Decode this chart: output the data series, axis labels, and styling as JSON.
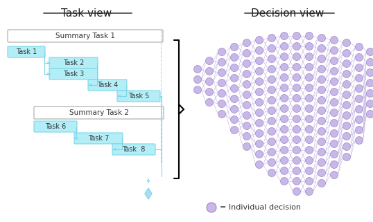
{
  "title_left": "Task view",
  "title_right": "Decision view",
  "legend_text": "= Individual decision",
  "task_box_color": "#b3eef7",
  "task_box_edge": "#7dd6ea",
  "summary_box_color": "#ffffff",
  "summary_box_edge": "#aaaaaa",
  "node_color": "#c8b8e8",
  "node_edge": "#9b85c9",
  "arrow_color": "#7dd6ea",
  "dashed_color": "#b0d8e8",
  "brace_color": "#000000",
  "diamond_color": "#a8dff0",
  "fig_bg": "#ffffff"
}
